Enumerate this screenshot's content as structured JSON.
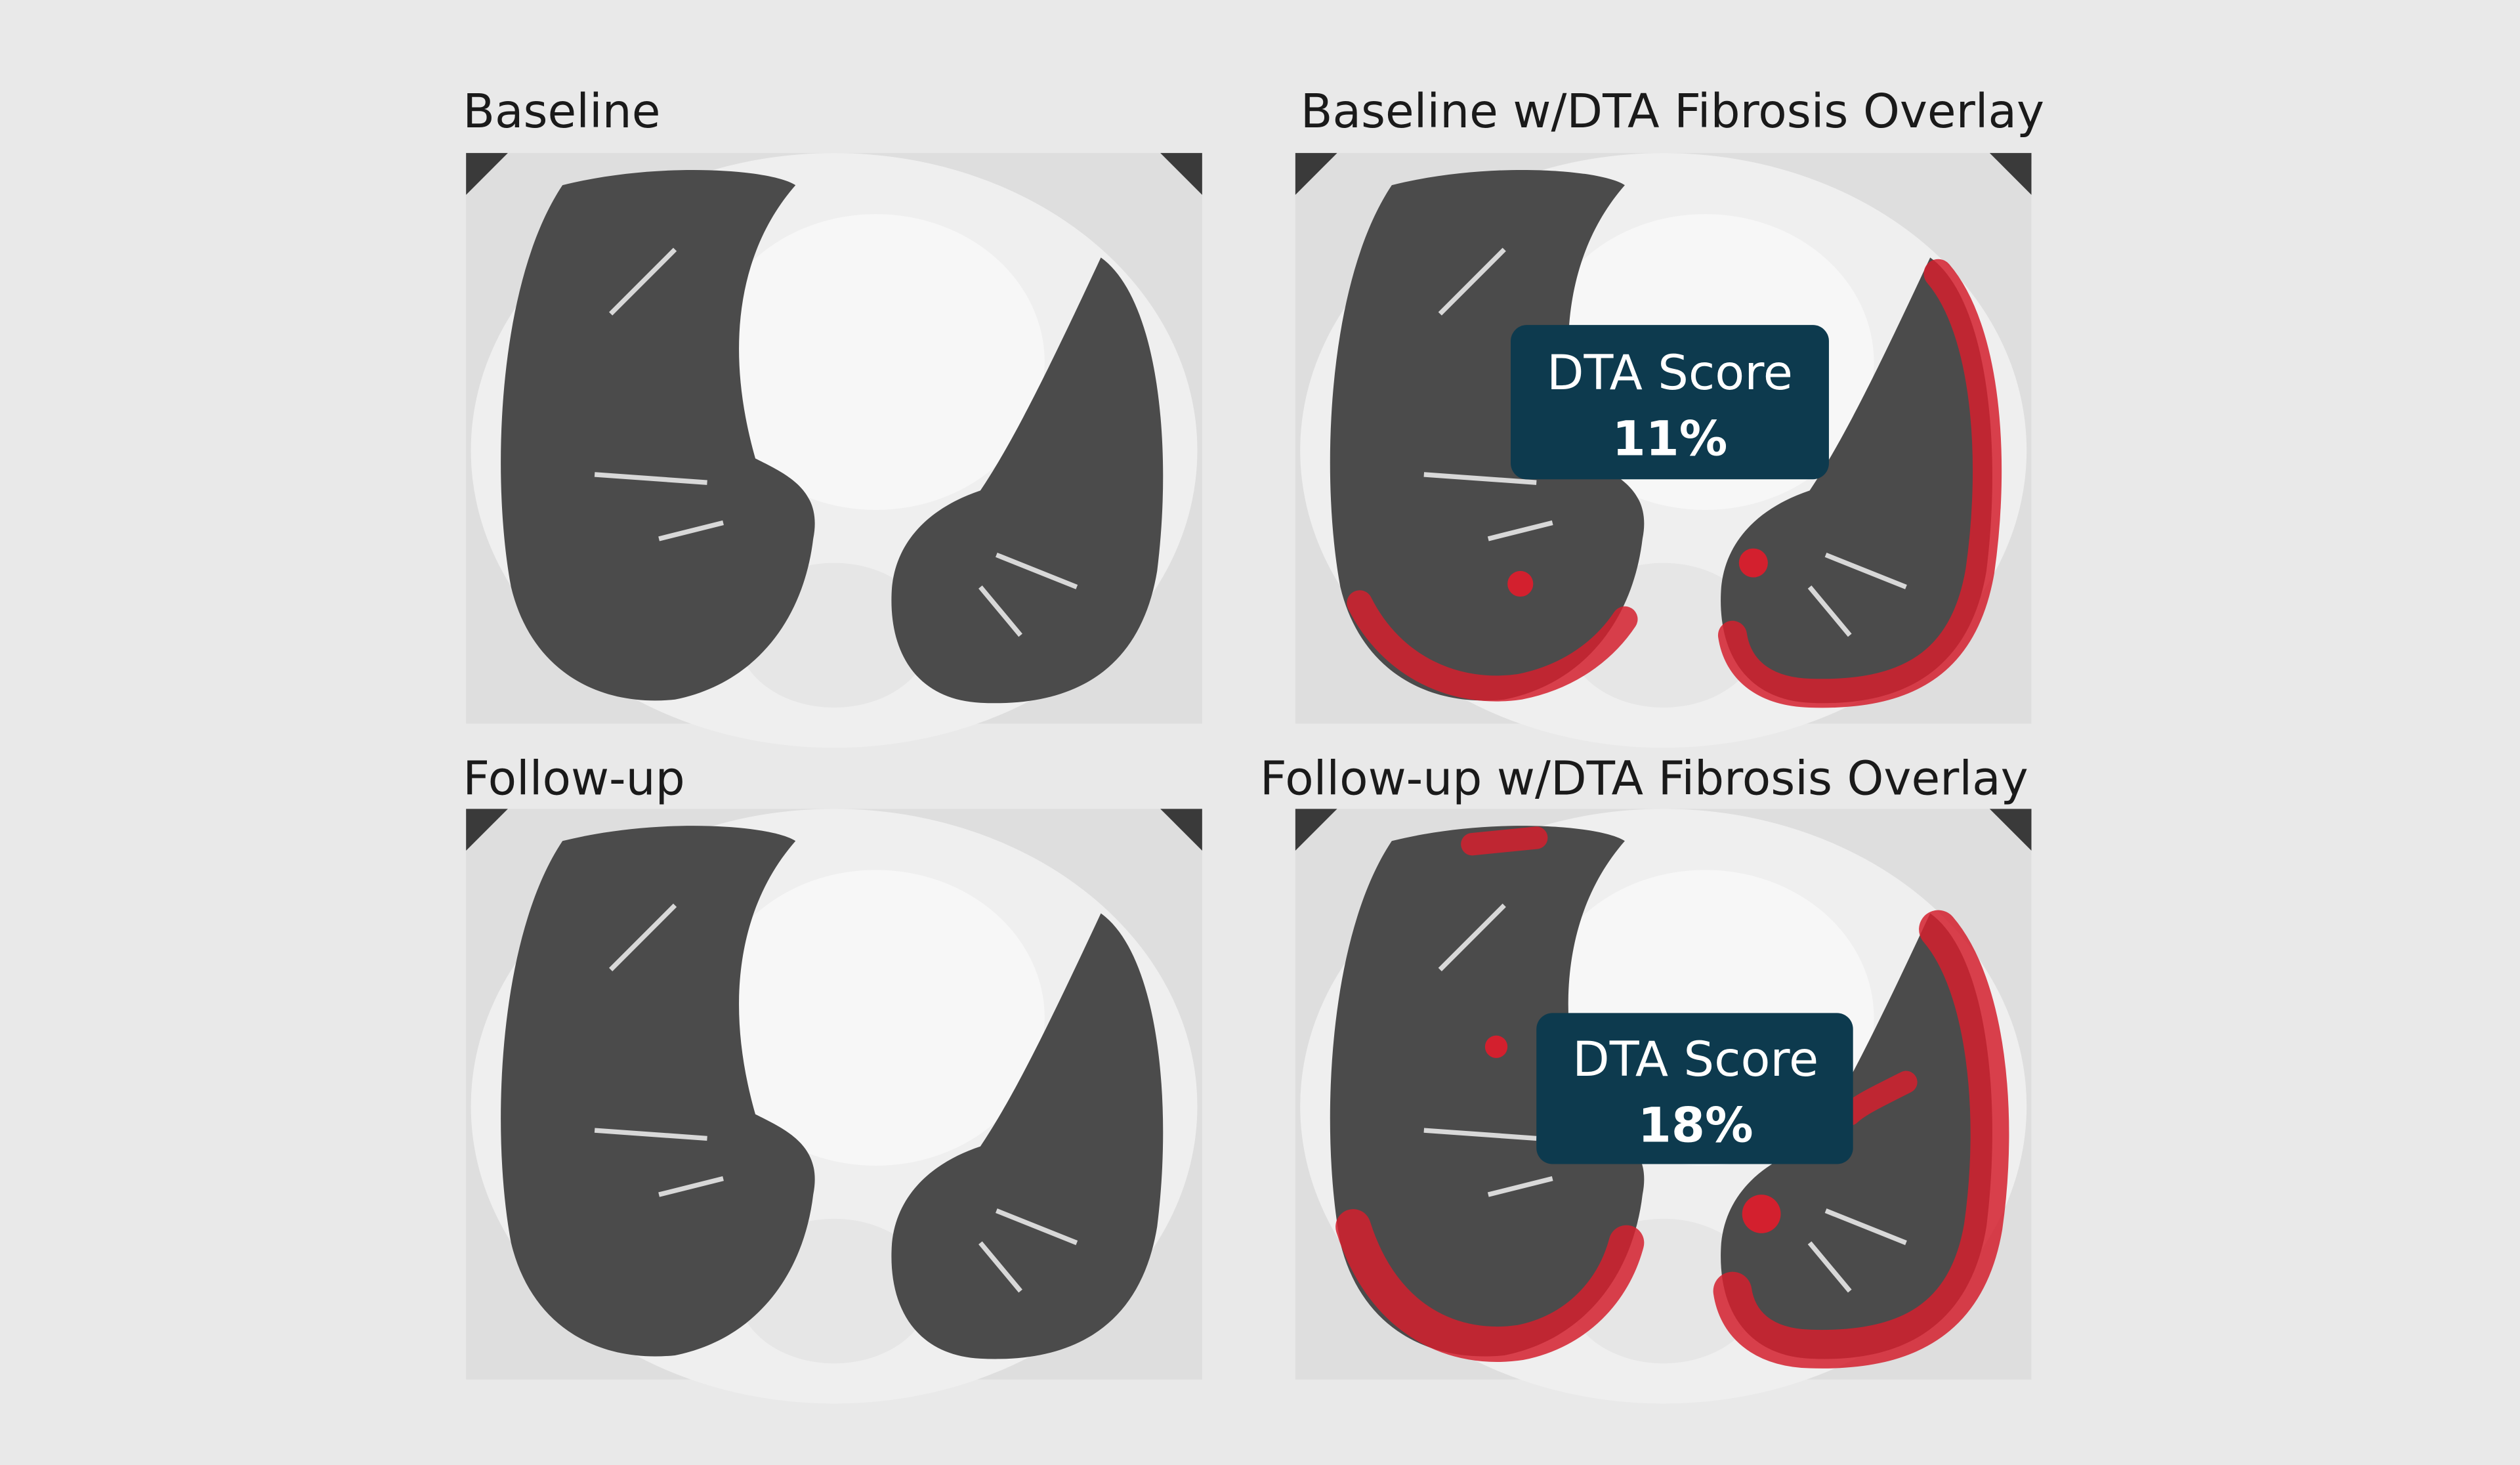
{
  "panels": [
    {
      "title": "Baseline"
    },
    {
      "title": "Baseline w/DTA Fibrosis Overlay",
      "score_label": "DTA Score",
      "score": "11%"
    },
    {
      "title": "Follow-up"
    },
    {
      "title": "Follow-up w/DTA Fibrosis Overlay",
      "score_label": "DTA Score",
      "score": "18%"
    }
  ]
}
